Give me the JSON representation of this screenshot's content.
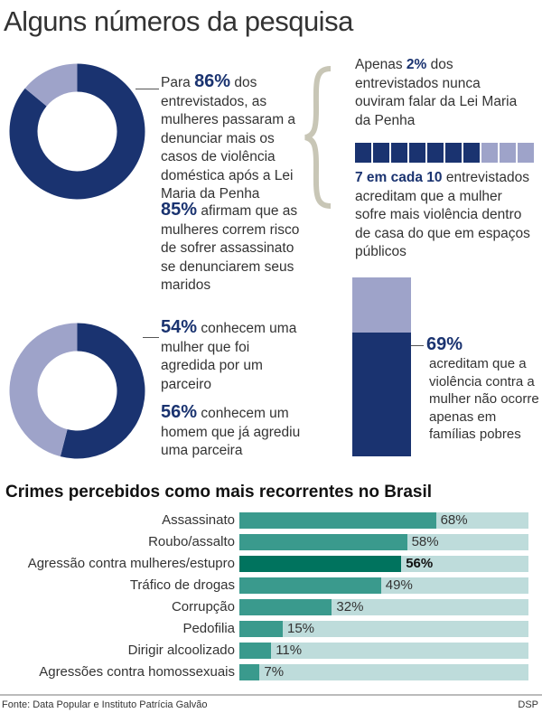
{
  "title": "Alguns números da pesquisa",
  "colors": {
    "dark": "#1a3370",
    "light": "#9ea3c9",
    "bar": "#3a9a8d",
    "bar_highlight": "#00735e",
    "track": "#bedcdb"
  },
  "stat1": {
    "pre": "Para ",
    "value": "86%",
    "text": " dos entrevistados, as mulheres passaram a denunciar mais os casos de violência doméstica após a Lei Maria da Penha",
    "percent": 86
  },
  "stat2": {
    "value": "85%",
    "text": " afirmam que as mulheres correm risco de sofrer assassinato se denunciarem seus maridos"
  },
  "stat3": {
    "pre": "Apenas ",
    "value": "2%",
    "text": " dos entrevistados nunca ouviram falar da Lei Maria da Penha"
  },
  "stat4": {
    "value": "7 em cada 10",
    "text": " entrevistados acreditam que a mulher sofre mais violência dentro de casa do que em espaços públicos",
    "filled": 7,
    "total": 10
  },
  "stat5": {
    "value": "54%",
    "text": " conhecem uma mulher que foi agredida por um parceiro",
    "percent": 54
  },
  "stat6": {
    "value": "56%",
    "text": " conhecem um homem que já agrediu uma parceira"
  },
  "stat7": {
    "value": "69%",
    "text": "acreditam que a violência contra a mulher não ocorre apenas em famílias pobres",
    "percent": 69
  },
  "chart_data": {
    "type": "bar",
    "title": "Crimes percebidos como mais recorrentes no Brasil",
    "categories": [
      "Assassinato",
      "Roubo/assalto",
      "Agressão contra mulheres/estupro",
      "Tráfico de drogas",
      "Corrupção",
      "Pedofilia",
      "Dirigir alcoolizado",
      "Agressões contra homossexuais"
    ],
    "values": [
      68,
      58,
      56,
      49,
      32,
      15,
      11,
      7
    ],
    "labels": [
      "68%",
      "58%",
      "56%",
      "49%",
      "32%",
      "15%",
      "11%",
      "7%"
    ],
    "highlight_index": 2,
    "xlim": [
      0,
      100
    ],
    "xlabel": "",
    "ylabel": ""
  },
  "footer": {
    "source": "Fonte: Data Popular e Instituto Patrícia Galvão",
    "credit": "DSP"
  }
}
